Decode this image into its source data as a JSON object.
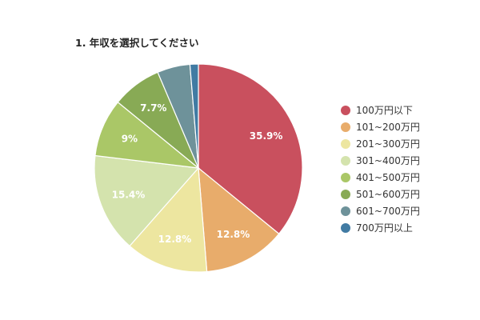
{
  "chart_data": {
    "type": "pie",
    "title": "1. 年収を選択してください",
    "categories": [
      "100万円以下",
      "101~200万円",
      "201~300万円",
      "301~400万円",
      "401~500万円",
      "501~600万円",
      "601~700万円",
      "700万円以上"
    ],
    "values": [
      35.9,
      12.8,
      12.8,
      15.4,
      9,
      7.7,
      5.1,
      1.3
    ],
    "data_labels": [
      "35.9%",
      "12.8%",
      "12.8%",
      "15.4%",
      "9%",
      "7.7%",
      "",
      ""
    ],
    "colors": [
      "#c9505e",
      "#e8ac6b",
      "#ede6a0",
      "#d4e3ad",
      "#aac767",
      "#88aa55",
      "#6e929a",
      "#417ba3"
    ],
    "legend_position": "right"
  }
}
